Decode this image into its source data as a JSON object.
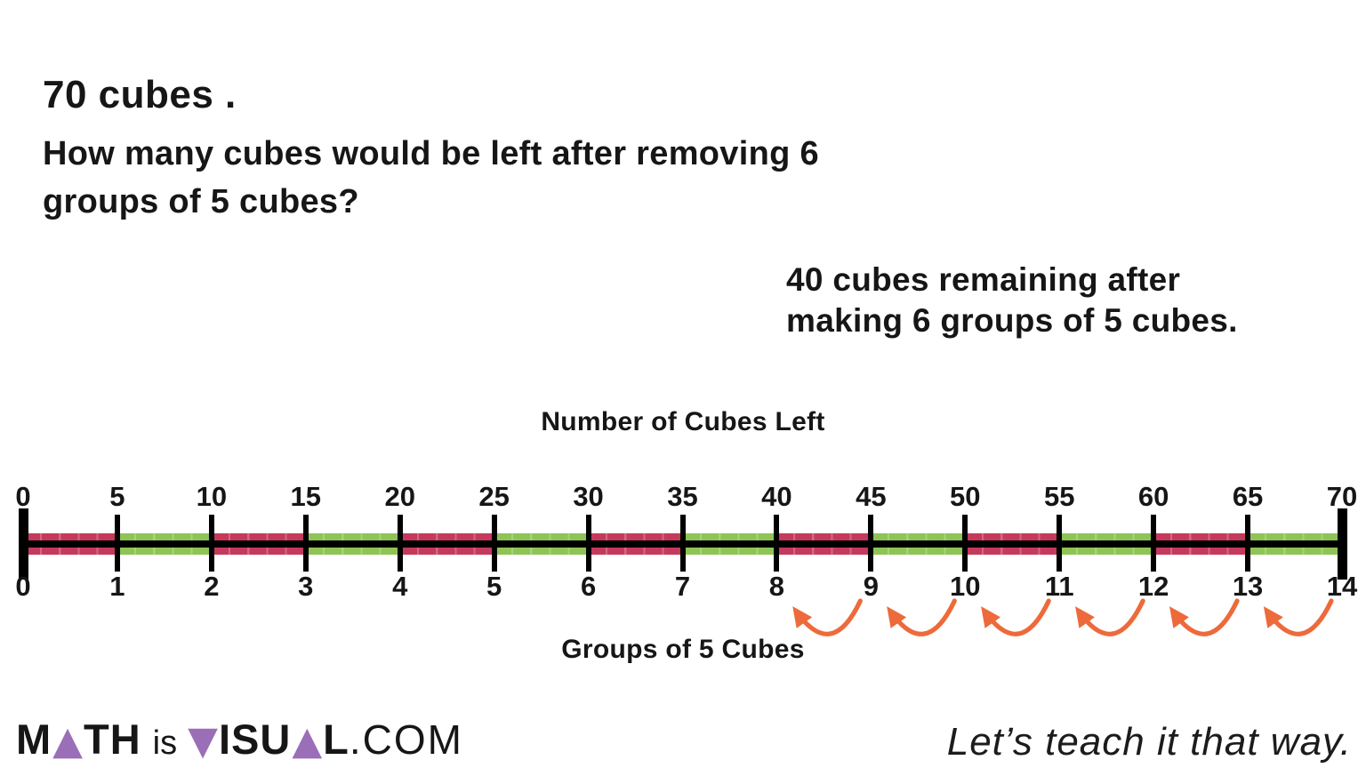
{
  "question": {
    "line1": "70 cubes .",
    "line2": "How many cubes would be left after removing 6",
    "line3": "groups of 5 cubes?"
  },
  "answer": {
    "line1": "40 cubes remaining after",
    "line2": "making 6 groups of 5 cubes."
  },
  "number_line": {
    "top_label": "Number of Cubes Left",
    "bottom_label": "Groups of 5 Cubes",
    "top_ticks": [
      "0",
      "5",
      "10",
      "15",
      "20",
      "25",
      "30",
      "35",
      "40",
      "45",
      "50",
      "55",
      "60",
      "65",
      "70"
    ],
    "bottom_ticks": [
      "0",
      "1",
      "2",
      "3",
      "4",
      "5",
      "6",
      "7",
      "8",
      "9",
      "10",
      "11",
      "12",
      "13",
      "14"
    ],
    "segments": [
      "red",
      "green",
      "red",
      "green",
      "red",
      "green",
      "red",
      "green",
      "red",
      "green",
      "red",
      "green",
      "red",
      "green"
    ],
    "colors": {
      "red": "#c53a5c",
      "red_divider": "#d4687e",
      "green": "#8ec455",
      "green_divider": "#a8d179",
      "line": "#000000",
      "arrow": "#ed6a3b"
    },
    "arrows": [
      {
        "from": "14",
        "to": "13"
      },
      {
        "from": "13",
        "to": "12"
      },
      {
        "from": "12",
        "to": "11"
      },
      {
        "from": "11",
        "to": "10"
      },
      {
        "from": "10",
        "to": "9"
      },
      {
        "from": "9",
        "to": "8"
      }
    ]
  },
  "chart_data": {
    "type": "number-line",
    "top_scale": {
      "label": "Number of Cubes Left",
      "min": 0,
      "max": 70,
      "step": 5
    },
    "bottom_scale": {
      "label": "Groups of 5 Cubes",
      "min": 0,
      "max": 14,
      "step": 1
    },
    "band_pattern": "alternating red/green segments of 5 cubes each, 14 segments total",
    "jumps": {
      "start": 14,
      "end": 8,
      "jump_size": 1,
      "count": 6,
      "direction": "left"
    }
  },
  "footer": {
    "logo": {
      "part_m": "M",
      "part_tri_up1": "▲",
      "part_th": "TH",
      "part_is": "is",
      "part_tri_down": "▼",
      "part_isu": "ISU",
      "part_tri_up2": "▲",
      "part_l": "L",
      "part_com": ".COM",
      "triangle_color": "#9a6fb8"
    },
    "tagline": "Let’s teach it that way."
  }
}
